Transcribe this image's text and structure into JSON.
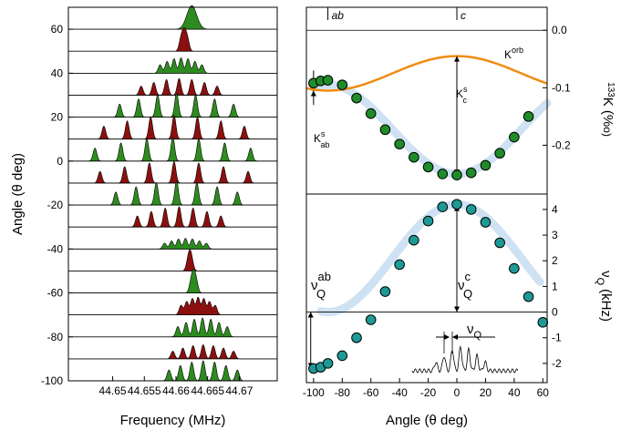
{
  "colors": {
    "green": "#2e8b1f",
    "red": "#8c1010",
    "orange": "#f08c10",
    "teal": "#1e9a96",
    "dot_green": "#1f8c2a",
    "band": "#cfe2f3"
  },
  "chart_data": [
    {
      "type": "area",
      "panel": "left-spectra",
      "xlabel": "Frequency (MHz)",
      "ylabel": "Angle (θ deg)",
      "xlim": [
        44.643,
        44.676
      ],
      "x_ticks": [
        {
          "value": 44.65,
          "label": "44.65"
        },
        {
          "value": 44.655,
          "label": "44.655"
        },
        {
          "value": 44.66,
          "label": "44.66"
        },
        {
          "value": 44.665,
          "label": "44.665"
        },
        {
          "value": 44.67,
          "label": "44.67"
        }
      ],
      "y_ticks": [
        {
          "value": 60,
          "label": "60"
        },
        {
          "value": 40,
          "label": "40"
        },
        {
          "value": 20,
          "label": "20"
        },
        {
          "value": 0,
          "label": "0"
        },
        {
          "value": -20,
          "label": "-20"
        },
        {
          "value": -40,
          "label": "-40"
        },
        {
          "value": -60,
          "label": "-60"
        },
        {
          "value": -80,
          "label": "-80"
        },
        {
          "value": -100,
          "label": "-100"
        }
      ],
      "spectra": [
        {
          "angle": 60,
          "color": "green",
          "center": 44.6625,
          "nu": 6e-05,
          "nlines": 1,
          "amp": 1.0
        },
        {
          "angle": 50,
          "color": "red",
          "center": 44.6613,
          "nu": 0.0005,
          "nlines": 3,
          "amp": 1.0
        },
        {
          "angle": 40,
          "color": "green",
          "center": 44.6608,
          "nu": 0.0011,
          "nlines": 7,
          "amp": 0.65
        },
        {
          "angle": 30,
          "color": "red",
          "center": 44.6605,
          "nu": 0.002,
          "nlines": 7,
          "amp": 0.7
        },
        {
          "angle": 20,
          "color": "green",
          "center": 44.6601,
          "nu": 0.003,
          "nlines": 7,
          "amp": 1.0
        },
        {
          "angle": 10,
          "color": "red",
          "center": 44.6597,
          "nu": 0.0037,
          "nlines": 7,
          "amp": 1.0
        },
        {
          "angle": 0,
          "color": "green",
          "center": 44.6595,
          "nu": 0.0041,
          "nlines": 7,
          "amp": 1.0
        },
        {
          "angle": -10,
          "color": "red",
          "center": 44.6597,
          "nu": 0.0039,
          "nlines": 7,
          "amp": 0.9
        },
        {
          "angle": -20,
          "color": "green",
          "center": 44.6601,
          "nu": 0.0032,
          "nlines": 7,
          "amp": 1.0
        },
        {
          "angle": -30,
          "color": "red",
          "center": 44.6605,
          "nu": 0.0022,
          "nlines": 7,
          "amp": 0.85
        },
        {
          "angle": -40,
          "color": "green",
          "center": 44.6615,
          "nu": 0.0011,
          "nlines": 7,
          "amp": 0.45
        },
        {
          "angle": -50,
          "color": "red",
          "center": 44.6622,
          "nu": 0.0003,
          "nlines": 3,
          "amp": 0.9
        },
        {
          "angle": -60,
          "color": "green",
          "center": 44.6628,
          "nu": 0.0004,
          "nlines": 3,
          "amp": 1.0
        },
        {
          "angle": -70,
          "color": "red",
          "center": 44.6635,
          "nu": 0.0009,
          "nlines": 7,
          "amp": 0.75
        },
        {
          "angle": -80,
          "color": "green",
          "center": 44.6642,
          "nu": 0.0013,
          "nlines": 7,
          "amp": 0.8
        },
        {
          "angle": -90,
          "color": "red",
          "center": 44.6643,
          "nu": 0.0016,
          "nlines": 7,
          "amp": 0.6
        },
        {
          "angle": -100,
          "color": "green",
          "center": 44.6643,
          "nu": 0.0018,
          "nlines": 7,
          "amp": 0.85
        }
      ]
    },
    {
      "type": "scatter",
      "panel": "top-right-shift",
      "xlim": [
        -105,
        63
      ],
      "ylim": [
        -0.285,
        0.04
      ],
      "ylabel": "133K (%)",
      "ylabel_prefix": "133",
      "ylabel_main": "K (%",
      "ylabel_suffix": "o)",
      "y_ticks": [
        {
          "value": 0,
          "label": "0.0"
        },
        {
          "value": -0.1,
          "label": "-0.1"
        },
        {
          "value": -0.2,
          "label": "-0.2"
        }
      ],
      "top_markers": [
        {
          "value": -90,
          "label": "ab"
        },
        {
          "value": 0,
          "label": "c"
        }
      ],
      "annotations": {
        "korb": {
          "base": "K",
          "sup": "orb"
        },
        "ksc": {
          "base": "K",
          "sup": "s",
          "sub": "c"
        },
        "ksab": {
          "base": "K",
          "sup": "s",
          "sub": "ab"
        }
      },
      "korb_curve": {
        "offset": -0.075,
        "amplitude": 0.03,
        "period_deg": 180
      },
      "x": [
        -100,
        -95,
        -90,
        -80,
        -70,
        -60,
        -50,
        -40,
        -30,
        -20,
        -10,
        0,
        10,
        20,
        30,
        40,
        50
      ],
      "y": [
        -0.092,
        -0.088,
        -0.087,
        -0.095,
        -0.118,
        -0.145,
        -0.173,
        -0.198,
        -0.221,
        -0.238,
        -0.25,
        -0.252,
        -0.248,
        -0.235,
        -0.214,
        -0.186,
        -0.15
      ],
      "fit_curve": {
        "min_value": -0.25,
        "max_value": -0.095
      }
    },
    {
      "type": "scatter",
      "panel": "bottom-right-quadrupole",
      "xlabel": "Angle (θ deg)",
      "xlim": [
        -105,
        63
      ],
      "ylim": [
        -2.75,
        4.6
      ],
      "ylabel": "νQ (kHz)",
      "ylabel_main": "ν",
      "ylabel_sub": "Q",
      "ylabel_unit": "(kHz)",
      "x_ticks": [
        {
          "value": -100,
          "label": "-100"
        },
        {
          "value": -80,
          "label": "-80"
        },
        {
          "value": -60,
          "label": "-60"
        },
        {
          "value": -40,
          "label": "-40"
        },
        {
          "value": -20,
          "label": "-20"
        },
        {
          "value": 0,
          "label": "0"
        },
        {
          "value": 20,
          "label": "20"
        },
        {
          "value": 40,
          "label": "40"
        },
        {
          "value": 60,
          "label": "60"
        }
      ],
      "y_ticks": [
        {
          "value": 4,
          "label": "4"
        },
        {
          "value": 3,
          "label": "3"
        },
        {
          "value": 2,
          "label": "2"
        },
        {
          "value": 1,
          "label": "1"
        },
        {
          "value": 0,
          "label": "0"
        },
        {
          "value": -1,
          "label": "-1"
        },
        {
          "value": -2,
          "label": "-2"
        }
      ],
      "annotations": {
        "nuqab": {
          "base": "ν",
          "sup": "ab",
          "sub": "Q"
        },
        "nuqc": {
          "base": "ν",
          "sup": "c",
          "sub": "Q"
        },
        "nuq": {
          "base": "ν",
          "sub": "Q"
        }
      },
      "x": [
        -100,
        -95,
        -90,
        -80,
        -70,
        -60,
        -50,
        -40,
        -30,
        -20,
        -10,
        0,
        10,
        20,
        30,
        40,
        50,
        60
      ],
      "y": [
        -2.2,
        -2.15,
        -2.0,
        -1.7,
        -1.0,
        -0.3,
        0.8,
        1.85,
        2.8,
        3.55,
        4.1,
        4.2,
        4.0,
        3.5,
        2.7,
        1.7,
        0.6,
        -0.4
      ],
      "fit_curve": {
        "amplitude": 2.1,
        "offset": 2.1,
        "period_deg": 180
      }
    }
  ]
}
